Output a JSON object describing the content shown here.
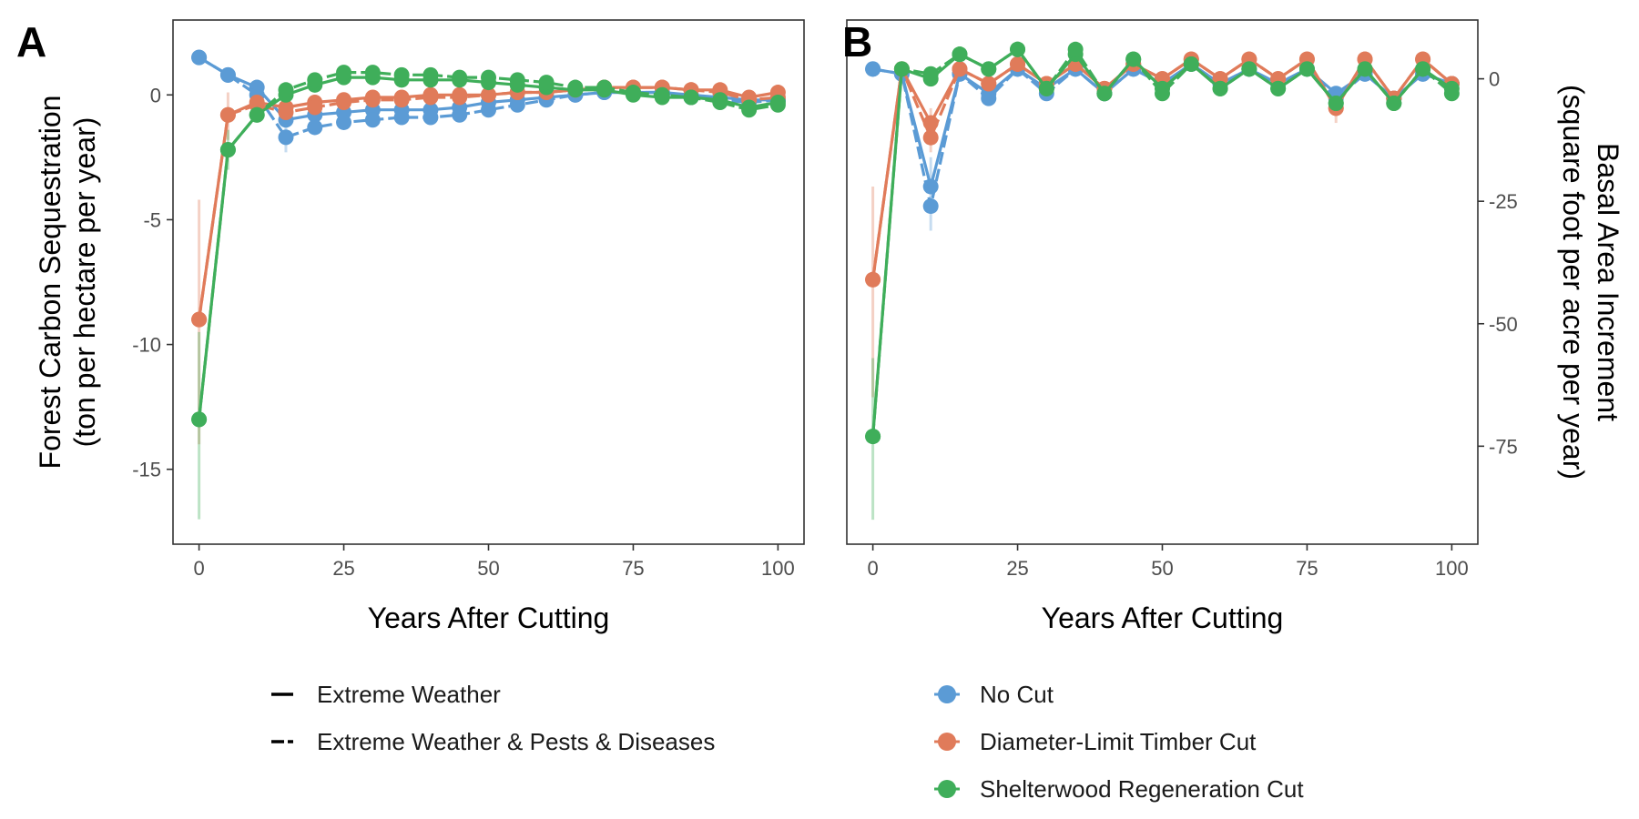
{
  "colors": {
    "no_cut": "#5b9bd5",
    "diameter_limit": "#e07b5a",
    "shelterwood": "#3fae5a",
    "axis": "#333333",
    "tick_text": "#4d4d4d"
  },
  "legend": {
    "linetype": [
      {
        "label": "Extreme Weather",
        "dash": "solid"
      },
      {
        "label": "Extreme Weather & Pests & Diseases",
        "dash": "dashed"
      }
    ],
    "treatment": [
      {
        "label": "No Cut",
        "color_key": "no_cut"
      },
      {
        "label": "Diameter-Limit Timber Cut",
        "color_key": "diameter_limit"
      },
      {
        "label": "Shelterwood Regeneration Cut",
        "color_key": "shelterwood"
      }
    ]
  },
  "chart_data": [
    {
      "panel": "A",
      "type": "line",
      "xlabel": "Years After Cutting",
      "ylabel_line1": "Forest Carbon Sequestration",
      "ylabel_line2": "(ton per hectare per year)",
      "y_axis_side": "left",
      "xlim": [
        -4.5,
        104.5
      ],
      "ylim": [
        -18.0,
        3.0
      ],
      "xticks": [
        0,
        25,
        50,
        75,
        100
      ],
      "yticks": [
        0,
        -5,
        -10,
        -15
      ],
      "ytick_labels": [
        "0",
        "-5",
        "-10",
        "-15"
      ],
      "grid": false,
      "legend_position": "bottom",
      "x": [
        0,
        5,
        10,
        15,
        20,
        25,
        30,
        35,
        40,
        45,
        50,
        55,
        60,
        65,
        70,
        75,
        80,
        85,
        90,
        95,
        100
      ],
      "series": [
        {
          "treatment": "no_cut",
          "scenario": "Extreme Weather",
          "values": [
            1.5,
            0.8,
            0.3,
            -1.0,
            -0.8,
            -0.7,
            -0.6,
            -0.6,
            -0.6,
            -0.5,
            -0.3,
            -0.2,
            -0.1,
            0.0,
            0.1,
            0.1,
            0.1,
            0.0,
            -0.1,
            -0.2,
            -0.2
          ]
        },
        {
          "treatment": "no_cut",
          "scenario": "Extreme Weather & Pests & Diseases",
          "values": [
            1.5,
            0.8,
            0.0,
            -1.7,
            -1.3,
            -1.1,
            -1.0,
            -0.9,
            -0.9,
            -0.8,
            -0.6,
            -0.4,
            -0.2,
            0.0,
            0.1,
            0.1,
            0.1,
            -0.1,
            -0.2,
            -0.3,
            -0.2
          ]
        },
        {
          "treatment": "diameter_limit",
          "scenario": "Extreme Weather",
          "values": [
            -9.0,
            -0.8,
            -0.3,
            -0.5,
            -0.3,
            -0.2,
            -0.1,
            -0.1,
            0.0,
            0.0,
            0.0,
            0.1,
            0.1,
            0.2,
            0.3,
            0.3,
            0.3,
            0.2,
            0.2,
            -0.1,
            0.1
          ]
        },
        {
          "treatment": "diameter_limit",
          "scenario": "Extreme Weather & Pests & Diseases",
          "values": [
            -9.0,
            -0.8,
            -0.4,
            -0.7,
            -0.5,
            -0.3,
            -0.2,
            -0.2,
            -0.1,
            -0.1,
            0.0,
            0.1,
            0.1,
            0.2,
            0.3,
            0.3,
            0.3,
            0.2,
            0.1,
            -0.2,
            -0.1
          ]
        },
        {
          "treatment": "shelterwood",
          "scenario": "Extreme Weather",
          "values": [
            -13.0,
            -2.2,
            -0.8,
            0.0,
            0.4,
            0.7,
            0.7,
            0.6,
            0.6,
            0.6,
            0.5,
            0.4,
            0.3,
            0.2,
            0.2,
            0.0,
            -0.1,
            -0.1,
            -0.2,
            -0.5,
            -0.3
          ]
        },
        {
          "treatment": "shelterwood",
          "scenario": "Extreme Weather & Pests & Diseases",
          "values": [
            -13.0,
            -2.2,
            -0.8,
            0.2,
            0.6,
            0.9,
            0.9,
            0.8,
            0.8,
            0.7,
            0.7,
            0.6,
            0.5,
            0.3,
            0.3,
            0.1,
            0.0,
            -0.1,
            -0.3,
            -0.6,
            -0.4
          ]
        }
      ],
      "error_bars": [
        {
          "treatment": "diameter_limit",
          "x": 0,
          "low": -14.0,
          "high": -4.2
        },
        {
          "treatment": "diameter_limit",
          "x": 5,
          "low": -1.8,
          "high": 0.1
        },
        {
          "treatment": "shelterwood",
          "x": 0,
          "low": -17.0,
          "high": -9.5
        },
        {
          "treatment": "shelterwood",
          "x": 5,
          "low": -3.0,
          "high": -1.4
        },
        {
          "treatment": "no_cut",
          "x": 15,
          "low": -2.3,
          "high": -0.6
        }
      ]
    },
    {
      "panel": "B",
      "type": "line",
      "xlabel": "Years After Cutting",
      "ylabel_line1": "Basal Area Increment",
      "ylabel_line2": "(square foot per acre per year)",
      "y_axis_side": "right",
      "xlim": [
        -4.5,
        104.5
      ],
      "ylim": [
        -95,
        12
      ],
      "xticks": [
        0,
        25,
        50,
        75,
        100
      ],
      "yticks": [
        0,
        -25,
        -50,
        -75
      ],
      "ytick_labels": [
        "0",
        "-25",
        "-50",
        "-75"
      ],
      "grid": false,
      "legend_position": "bottom",
      "x": [
        0,
        5,
        10,
        15,
        20,
        25,
        30,
        35,
        40,
        45,
        50,
        55,
        60,
        65,
        70,
        75,
        80,
        85,
        90,
        95,
        100
      ],
      "series": [
        {
          "treatment": "no_cut",
          "scenario": "Extreme Weather",
          "values": [
            2,
            1,
            -22,
            1,
            -3,
            2,
            -2,
            2,
            -3,
            2,
            -1,
            3,
            -1,
            2,
            -1,
            2,
            -3,
            1,
            -4,
            1,
            -1
          ]
        },
        {
          "treatment": "no_cut",
          "scenario": "Extreme Weather & Pests & Diseases",
          "values": [
            2,
            1,
            -26,
            1,
            -4,
            2,
            -3,
            2,
            -3,
            2,
            -1,
            3,
            -1,
            2,
            -1,
            2,
            -4,
            1,
            -4,
            1,
            -1
          ]
        },
        {
          "treatment": "diameter_limit",
          "scenario": "Extreme Weather",
          "values": [
            -41,
            2,
            -9,
            2,
            -1,
            3,
            -1,
            3,
            -2,
            3,
            0,
            4,
            0,
            4,
            0,
            4,
            -6,
            4,
            -4,
            4,
            -1
          ]
        },
        {
          "treatment": "diameter_limit",
          "scenario": "Extreme Weather & Pests & Diseases",
          "values": [
            -41,
            2,
            -12,
            2,
            -1,
            3,
            -1,
            3,
            -2,
            3,
            0,
            4,
            0,
            4,
            0,
            4,
            -6,
            4,
            -4,
            4,
            -1
          ]
        },
        {
          "treatment": "shelterwood",
          "scenario": "Extreme Weather",
          "values": [
            -73,
            2,
            0,
            5,
            2,
            6,
            -2,
            5,
            -3,
            4,
            -2,
            3,
            -2,
            2,
            -2,
            2,
            -5,
            2,
            -5,
            2,
            -2
          ]
        },
        {
          "treatment": "shelterwood",
          "scenario": "Extreme Weather & Pests & Diseases",
          "values": [
            -73,
            2,
            1,
            5,
            2,
            6,
            -2,
            6,
            -3,
            4,
            -3,
            3,
            -2,
            2,
            -2,
            2,
            -5,
            2,
            -5,
            2,
            -3
          ]
        }
      ],
      "error_bars": [
        {
          "treatment": "diameter_limit",
          "x": 0,
          "low": -65,
          "high": -22
        },
        {
          "treatment": "shelterwood",
          "x": 0,
          "low": -90,
          "high": -57
        },
        {
          "treatment": "no_cut",
          "x": 10,
          "low": -31,
          "high": -16
        },
        {
          "treatment": "diameter_limit",
          "x": 10,
          "low": -15,
          "high": -6
        },
        {
          "treatment": "diameter_limit",
          "x": 80,
          "low": -9,
          "high": -3
        }
      ]
    }
  ]
}
